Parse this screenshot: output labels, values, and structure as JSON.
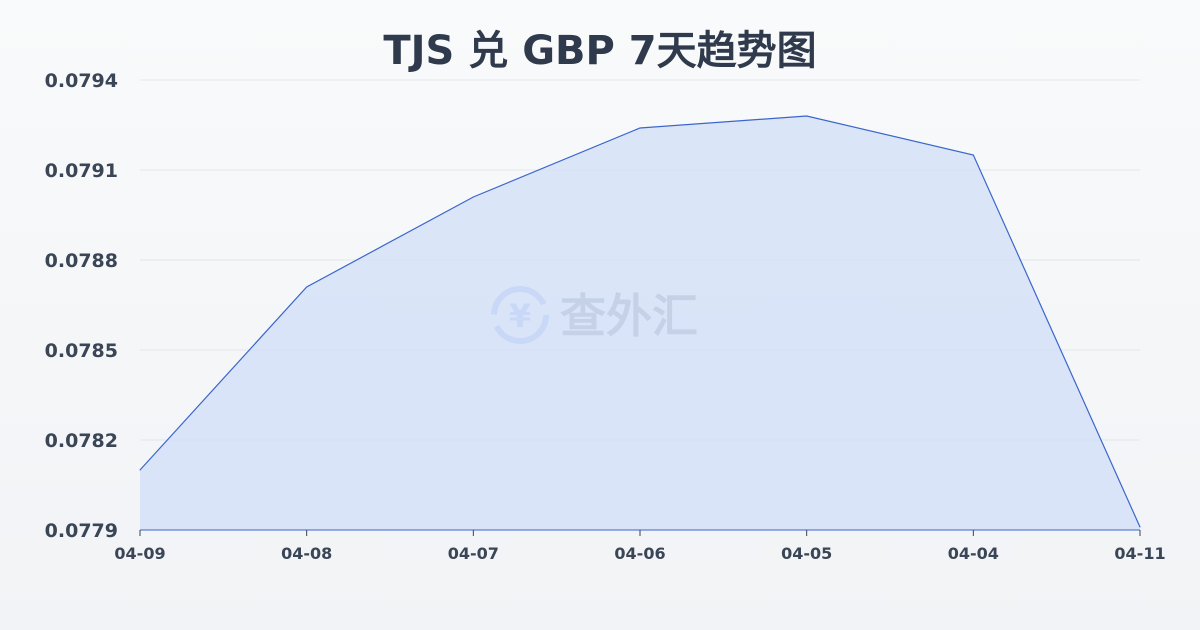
{
  "chart_data": {
    "type": "area",
    "title": "TJS 兑 GBP 7天趋势图",
    "categories": [
      "04-09",
      "04-08",
      "04-07",
      "04-06",
      "04-05",
      "04-04",
      "04-11"
    ],
    "values": [
      0.0781,
      0.07871,
      0.07901,
      0.07924,
      0.07928,
      0.07915,
      0.07791
    ],
    "yticks": [
      "0.0794",
      "0.0791",
      "0.0788",
      "0.0785",
      "0.0782",
      "0.0779"
    ],
    "ylim": [
      0.0779,
      0.0794
    ],
    "grid": true,
    "line_color": "#3a66cc",
    "fill_color": "#d3e0f7"
  },
  "watermark": {
    "text": "查外汇",
    "icon": "yen-exchange-icon"
  }
}
